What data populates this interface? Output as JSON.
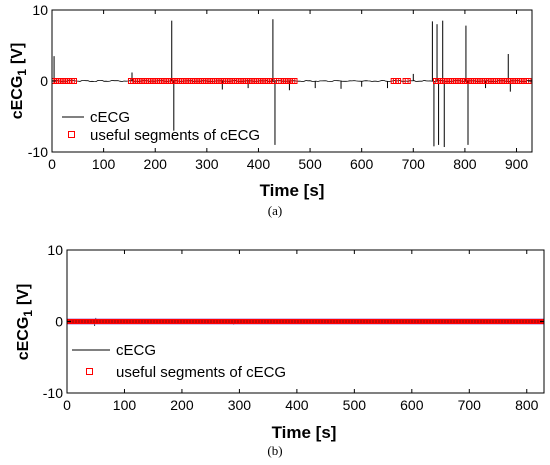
{
  "chart_data": [
    {
      "panel_label": "(a)",
      "type": "line",
      "xlabel": "Time [s]",
      "ylabel": "cECG",
      "ylabel_subscript": "1",
      "ylabel_unit": "[V]",
      "xlim": [
        0,
        930
      ],
      "ylim": [
        -10,
        10
      ],
      "x_ticks": [
        0,
        100,
        200,
        300,
        400,
        500,
        600,
        700,
        800,
        900
      ],
      "y_ticks": [
        -10,
        0,
        10
      ],
      "legend": {
        "placement": "lower-left",
        "entries": [
          "cECG",
          "useful segments of cECG"
        ]
      },
      "series": [
        {
          "name": "cECG",
          "color": "#000000",
          "style": "line",
          "spikes": [
            {
              "x": 4,
              "y": 3.5
            },
            {
              "x": 155,
              "y": 1.2
            },
            {
              "x": 232,
              "y": 8.5
            },
            {
              "x": 236,
              "y": -7.0
            },
            {
              "x": 428,
              "y": 8.7
            },
            {
              "x": 432,
              "y": -9.0
            },
            {
              "x": 330,
              "y": -1.2
            },
            {
              "x": 380,
              "y": -1.0
            },
            {
              "x": 460,
              "y": -1.3
            },
            {
              "x": 510,
              "y": -1.0
            },
            {
              "x": 560,
              "y": -1.1
            },
            {
              "x": 600,
              "y": -0.8
            },
            {
              "x": 650,
              "y": -1.0
            },
            {
              "x": 700,
              "y": 1.0
            },
            {
              "x": 737,
              "y": 8.4
            },
            {
              "x": 740,
              "y": -9.2
            },
            {
              "x": 746,
              "y": 8.0
            },
            {
              "x": 749,
              "y": -9.0
            },
            {
              "x": 757,
              "y": 8.5
            },
            {
              "x": 760,
              "y": -9.3
            },
            {
              "x": 802,
              "y": 7.8
            },
            {
              "x": 806,
              "y": -9.0
            },
            {
              "x": 840,
              "y": -1.0
            },
            {
              "x": 884,
              "y": 3.8
            },
            {
              "x": 888,
              "y": -1.5
            }
          ]
        },
        {
          "name": "useful segments of cECG",
          "color": "#ff0000",
          "style": "square-markers",
          "y": 0,
          "segments": [
            [
              0,
              44
            ],
            [
              153,
              432
            ],
            [
              440,
              470
            ],
            [
              662,
              671
            ],
            [
              685,
              690
            ],
            [
              744,
              924
            ]
          ]
        }
      ]
    },
    {
      "panel_label": "(b)",
      "type": "line",
      "xlabel": "Time [s]",
      "ylabel": "cECG",
      "ylabel_subscript": "1",
      "ylabel_unit": "[V]",
      "xlim": [
        0,
        830
      ],
      "ylim": [
        -10,
        10
      ],
      "x_ticks": [
        0,
        100,
        200,
        300,
        400,
        500,
        600,
        700,
        800
      ],
      "y_ticks": [
        -10,
        0,
        10
      ],
      "legend": {
        "placement": "lower-left",
        "entries": [
          "cECG",
          "useful segments of cECG"
        ]
      },
      "series": [
        {
          "name": "cECG",
          "color": "#000000",
          "style": "line",
          "spikes": [
            {
              "x": 48,
              "y": -0.6
            },
            {
              "x": 50,
              "y": 0.5
            },
            {
              "x": 290,
              "y": -0.4
            },
            {
              "x": 700,
              "y": -0.3
            }
          ]
        },
        {
          "name": "useful segments of cECG",
          "color": "#ff0000",
          "style": "square-markers",
          "y": 0,
          "segments": [
            [
              0,
              830
            ]
          ]
        }
      ]
    }
  ]
}
